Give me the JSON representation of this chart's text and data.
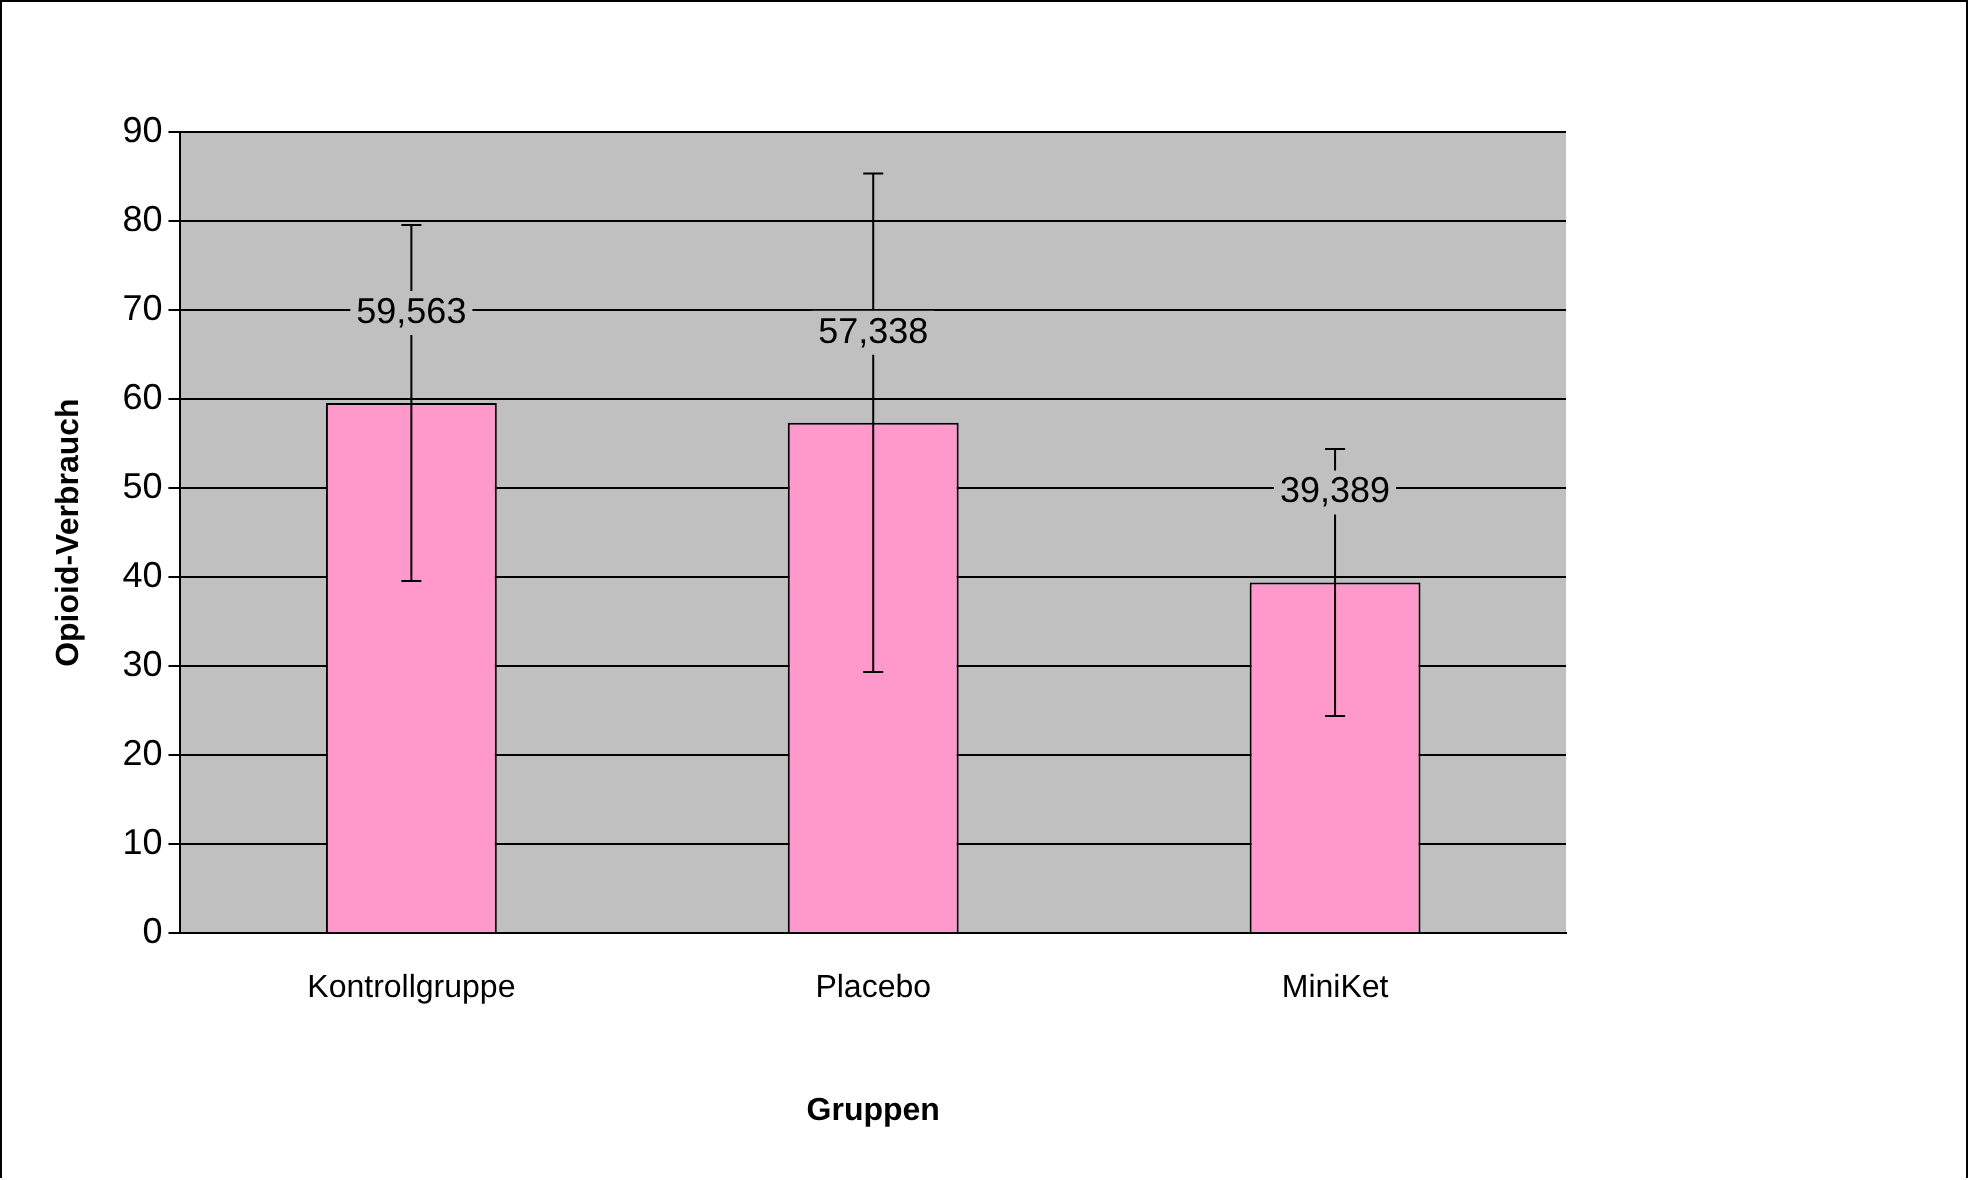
{
  "chart_data": {
    "type": "bar",
    "xlabel": "Gruppen",
    "ylabel": "Opioid-Verbrauch",
    "categories": [
      "Kontrollgruppe",
      "Placebo",
      "MiniKet"
    ],
    "values": [
      59.563,
      57.338,
      39.389
    ],
    "annotations": [
      {
        "text": "59,563",
        "x": "Kontrollgruppe",
        "y": 59.563
      },
      {
        "text": "57,338",
        "x": "Placebo",
        "y": 57.338
      },
      {
        "text": "39,389",
        "x": "MiniKet",
        "y": 39.389
      }
    ],
    "errors": [
      20,
      28,
      15
    ],
    "color": "#ff99cc",
    "ylim": [
      0,
      90
    ],
    "yticks": [
      0,
      10,
      20,
      30,
      40,
      50,
      60,
      70,
      80,
      90
    ],
    "grid": "y",
    "legend": false
  }
}
